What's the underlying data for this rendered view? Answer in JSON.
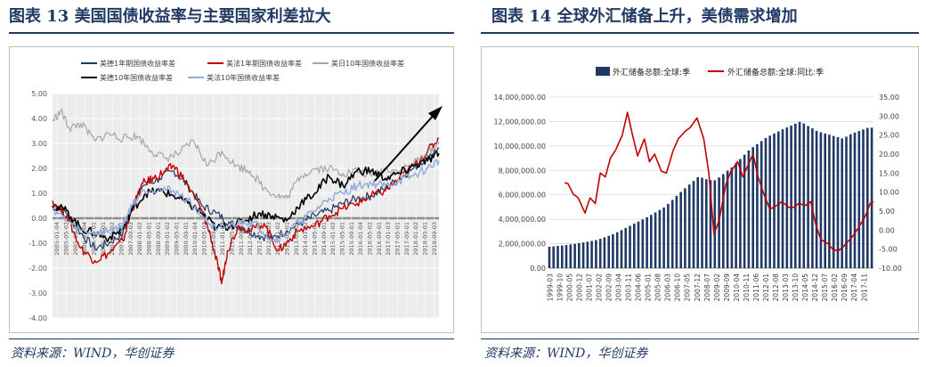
{
  "left_panel": {
    "title": "图表 13 美国国债收益率与主要国家利差拉大",
    "source": "资料来源：WIND，华创证券"
  },
  "right_panel": {
    "title": "图表 14 全球外汇储备上升，美债需求增加",
    "source": "资料来源：WIND，华创证券"
  },
  "chart_data": [
    {
      "type": "line",
      "title": "",
      "ylim": [
        -4,
        5
      ],
      "y_ticks": [
        "5.00",
        "4.00",
        "3.00",
        "2.00",
        "1.00",
        "0.00",
        "-1.00",
        "-2.00",
        "-3.00",
        "-4.00"
      ],
      "grid": true,
      "legend_position": "top",
      "trend_arrow": true,
      "x_tick_labels": [
        "2005-01-04",
        "2005-05-02",
        "2005-09-01",
        "2006-01-04",
        "2006-05-01",
        "2006-09-01",
        "2007-01-02",
        "2007-05-01",
        "2007-09-03",
        "2008-01-02",
        "2008-05-01",
        "2008-09-01",
        "2009-01-02",
        "2009-05-01",
        "2009-09-01",
        "2010-01-04",
        "2010-05-03",
        "2010-09-01",
        "2011-01-04",
        "2011-05-02",
        "2011-09-01",
        "2012-01-03",
        "2012-05-01",
        "2012-09-03",
        "2013-01-02",
        "2013-05-01",
        "2013-09-02",
        "2014-01-02",
        "2014-05-01",
        "2014-09-01",
        "2015-01-02",
        "2015-05-01",
        "2015-09-01",
        "2016-01-04",
        "2016-05-02",
        "2016-09-01",
        "2017-01-03",
        "2017-05-01",
        "2017-09-01",
        "2018-01-02",
        "2018-05-01",
        "2018-09-03"
      ],
      "x_years": [
        2005,
        2018.7
      ],
      "series": [
        {
          "name": "美德1年期国债收益率差",
          "color": "#1f3864",
          "width": 1.2,
          "points": [
            [
              2005,
              0.6
            ],
            [
              2005.5,
              0.2
            ],
            [
              2006,
              -0.6
            ],
            [
              2006.5,
              -1.2
            ],
            [
              2007,
              -1.0
            ],
            [
              2007.5,
              -0.6
            ],
            [
              2007.8,
              0.4
            ],
            [
              2008.2,
              1.3
            ],
            [
              2008.8,
              1.6
            ],
            [
              2009.3,
              1.9
            ],
            [
              2009.8,
              1.3
            ],
            [
              2010.3,
              0.5
            ],
            [
              2010.8,
              0.2
            ],
            [
              2011.3,
              -0.2
            ],
            [
              2011.8,
              -0.4
            ],
            [
              2012.3,
              -0.7
            ],
            [
              2012.8,
              -0.8
            ],
            [
              2013.3,
              -0.5
            ],
            [
              2013.8,
              -0.2
            ],
            [
              2014.3,
              0.1
            ],
            [
              2014.8,
              0.3
            ],
            [
              2015.3,
              0.6
            ],
            [
              2015.8,
              0.8
            ],
            [
              2016.3,
              0.9
            ],
            [
              2016.8,
              1.2
            ],
            [
              2017.3,
              1.6
            ],
            [
              2017.8,
              2.0
            ],
            [
              2018.3,
              2.5
            ],
            [
              2018.7,
              2.8
            ]
          ]
        },
        {
          "name": "美法1年期国债收益率差",
          "color": "#c00000",
          "width": 1.4,
          "points": [
            [
              2005,
              0.7
            ],
            [
              2005.5,
              0.1
            ],
            [
              2006,
              -1.2
            ],
            [
              2006.5,
              -1.7
            ],
            [
              2007,
              -1.4
            ],
            [
              2007.5,
              -0.9
            ],
            [
              2007.8,
              0.3
            ],
            [
              2008.2,
              1.4
            ],
            [
              2008.6,
              1.6
            ],
            [
              2009,
              1.9
            ],
            [
              2009.3,
              2.1
            ],
            [
              2009.7,
              1.5
            ],
            [
              2010.3,
              0.3
            ],
            [
              2010.6,
              -0.7
            ],
            [
              2010.9,
              -2.1
            ],
            [
              2011.0,
              -2.6
            ],
            [
              2011.2,
              -1.3
            ],
            [
              2011.6,
              -0.3
            ],
            [
              2012,
              -0.5
            ],
            [
              2012.5,
              -0.2
            ],
            [
              2013,
              -1.3
            ],
            [
              2013.3,
              -1.0
            ],
            [
              2013.7,
              -0.5
            ],
            [
              2014.3,
              -0.3
            ],
            [
              2014.8,
              0.1
            ],
            [
              2015.3,
              0.4
            ],
            [
              2015.8,
              0.6
            ],
            [
              2016.3,
              0.9
            ],
            [
              2016.8,
              1.1
            ],
            [
              2017.3,
              1.6
            ],
            [
              2017.8,
              2.1
            ],
            [
              2018.3,
              2.7
            ],
            [
              2018.7,
              3.2
            ]
          ]
        },
        {
          "name": "美日10年国债收益率差",
          "color": "#a6a6a6",
          "width": 1.2,
          "points": [
            [
              2005,
              3.9
            ],
            [
              2005.3,
              4.3
            ],
            [
              2005.6,
              3.6
            ],
            [
              2006,
              3.8
            ],
            [
              2006.5,
              3.1
            ],
            [
              2007,
              3.4
            ],
            [
              2007.5,
              3.2
            ],
            [
              2008,
              3.3
            ],
            [
              2008.5,
              2.7
            ],
            [
              2009,
              2.4
            ],
            [
              2009.5,
              2.6
            ],
            [
              2010,
              3.1
            ],
            [
              2010.5,
              2.1
            ],
            [
              2011,
              2.7
            ],
            [
              2011.5,
              2.1
            ],
            [
              2012,
              1.9
            ],
            [
              2012.5,
              1.2
            ],
            [
              2013,
              0.9
            ],
            [
              2013.3,
              0.8
            ],
            [
              2013.8,
              1.7
            ],
            [
              2014.3,
              2.0
            ],
            [
              2014.8,
              2.0
            ],
            [
              2015.3,
              1.8
            ],
            [
              2015.8,
              1.9
            ],
            [
              2016.3,
              1.7
            ],
            [
              2016.8,
              2.0
            ],
            [
              2017.3,
              1.9
            ],
            [
              2017.8,
              2.2
            ],
            [
              2018.3,
              2.6
            ],
            [
              2018.7,
              3.0
            ]
          ]
        },
        {
          "name": "美德10年国债收益率差",
          "color": "#000000",
          "width": 1.6,
          "points": [
            [
              2005,
              0.5
            ],
            [
              2005.5,
              0.3
            ],
            [
              2006,
              -0.4
            ],
            [
              2006.5,
              -0.6
            ],
            [
              2007,
              -0.8
            ],
            [
              2007.5,
              -0.4
            ],
            [
              2007.8,
              0.3
            ],
            [
              2008.3,
              1.0
            ],
            [
              2008.8,
              1.1
            ],
            [
              2009.3,
              0.9
            ],
            [
              2009.8,
              0.6
            ],
            [
              2010.3,
              0.2
            ],
            [
              2010.8,
              -0.4
            ],
            [
              2011.3,
              -0.3
            ],
            [
              2011.8,
              -0.1
            ],
            [
              2012.3,
              0.2
            ],
            [
              2012.8,
              0.1
            ],
            [
              2013.3,
              -0.1
            ],
            [
              2013.8,
              0.6
            ],
            [
              2014.3,
              1.0
            ],
            [
              2014.8,
              1.7
            ],
            [
              2015.3,
              1.3
            ],
            [
              2015.8,
              1.9
            ],
            [
              2016.3,
              1.9
            ],
            [
              2016.8,
              1.6
            ],
            [
              2017.3,
              1.8
            ],
            [
              2017.8,
              2.1
            ],
            [
              2018.3,
              2.3
            ],
            [
              2018.7,
              2.6
            ]
          ]
        },
        {
          "name": "美法10年国债收益率差",
          "color": "#8eaadb",
          "width": 1.4,
          "points": [
            [
              2005,
              0.4
            ],
            [
              2005.5,
              -0.1
            ],
            [
              2006,
              -0.5
            ],
            [
              2006.5,
              -0.6
            ],
            [
              2007,
              -0.5
            ],
            [
              2007.5,
              -0.3
            ],
            [
              2007.8,
              0.5
            ],
            [
              2008.2,
              1.1
            ],
            [
              2008.8,
              1.2
            ],
            [
              2009.3,
              1.1
            ],
            [
              2009.8,
              0.7
            ],
            [
              2010.3,
              0.1
            ],
            [
              2010.8,
              -0.5
            ],
            [
              2011.3,
              -0.3
            ],
            [
              2011.8,
              -0.1
            ],
            [
              2012.3,
              -0.3
            ],
            [
              2012.8,
              -0.9
            ],
            [
              2013.3,
              -0.6
            ],
            [
              2013.8,
              -0.1
            ],
            [
              2014.3,
              0.3
            ],
            [
              2014.8,
              0.8
            ],
            [
              2015.3,
              1.0
            ],
            [
              2015.8,
              1.3
            ],
            [
              2016.3,
              1.4
            ],
            [
              2016.8,
              1.3
            ],
            [
              2017.3,
              1.5
            ],
            [
              2017.8,
              1.7
            ],
            [
              2018.3,
              2.0
            ],
            [
              2018.7,
              2.3
            ]
          ]
        }
      ]
    },
    {
      "type": "bar",
      "title": "",
      "grid": true,
      "legend_position": "top",
      "y_left_ticks": [
        "14,000,000.00",
        "12,000,000.00",
        "10,000,000.00",
        "8,000,000.00",
        "6,000,000.00",
        "4,000,000.00",
        "2,000,000.00",
        "0.00"
      ],
      "y_left_range": [
        0,
        14000000
      ],
      "y_right_ticks": [
        "35.00",
        "30.00",
        "25.00",
        "20.00",
        "15.00",
        "10.00",
        "5.00",
        "0.00",
        "-5.00",
        "-10.00"
      ],
      "y_right_range": [
        -10,
        35
      ],
      "x_tick_labels": [
        "1999-03",
        "1999-10",
        "2000-05",
        "2000-12",
        "2001-07",
        "2002-02",
        "2002-09",
        "2003-04",
        "2003-11",
        "2004-06",
        "2005-01",
        "2005-08",
        "2006-03",
        "2006-10",
        "2007-05",
        "2007-12",
        "2008-07",
        "2009-02",
        "2009-09",
        "2010-04",
        "2010-11",
        "2011-06",
        "2012-01",
        "2012-08",
        "2013-03",
        "2013-10",
        "2014-05",
        "2014-12",
        "2015-07",
        "2016-02",
        "2016-09",
        "2017-04",
        "2017-11"
      ],
      "x_years": [
        1999.2,
        2018.3
      ],
      "series": [
        {
          "name": "外汇储备总额:全球:季",
          "kind": "bar",
          "color": "#1f3864",
          "axis": "left",
          "points": [
            [
              1999.2,
              1.75
            ],
            [
              2000,
              1.85
            ],
            [
              2001,
              2.05
            ],
            [
              2002,
              2.3
            ],
            [
              2003,
              2.8
            ],
            [
              2004,
              3.5
            ],
            [
              2005,
              4.2
            ],
            [
              2006,
              5.0
            ],
            [
              2007,
              6.3
            ],
            [
              2008,
              7.5
            ],
            [
              2008.6,
              7.2
            ],
            [
              2009,
              7.2
            ],
            [
              2010,
              8.3
            ],
            [
              2011,
              9.7
            ],
            [
              2012,
              10.7
            ],
            [
              2013,
              11.4
            ],
            [
              2014,
              12.0
            ],
            [
              2015,
              11.2
            ],
            [
              2016,
              10.8
            ],
            [
              2016.5,
              10.6
            ],
            [
              2017,
              11.0
            ],
            [
              2018,
              11.5
            ],
            [
              2018.3,
              11.5
            ]
          ]
        },
        {
          "name": "外汇储备总额:全球:同比:季",
          "kind": "line",
          "color": "#c00000",
          "axis": "right",
          "points": [
            [
              2000.1,
              12.5
            ],
            [
              2000.3,
              12.2
            ],
            [
              2000.6,
              9.5
            ],
            [
              2000.9,
              8.5
            ],
            [
              2001.3,
              4.5
            ],
            [
              2001.6,
              8.5
            ],
            [
              2001.9,
              7.0
            ],
            [
              2002.2,
              15.0
            ],
            [
              2002.5,
              14.0
            ],
            [
              2002.8,
              19.0
            ],
            [
              2003.1,
              21.0
            ],
            [
              2003.5,
              25.0
            ],
            [
              2003.8,
              31.0
            ],
            [
              2004.1,
              25.0
            ],
            [
              2004.4,
              19.5
            ],
            [
              2004.8,
              24.0
            ],
            [
              2005.1,
              18.0
            ],
            [
              2005.4,
              20.0
            ],
            [
              2005.8,
              15.5
            ],
            [
              2006.1,
              15.0
            ],
            [
              2006.5,
              21.0
            ],
            [
              2006.8,
              24.0
            ],
            [
              2007.2,
              26.0
            ],
            [
              2007.5,
              27.0
            ],
            [
              2007.9,
              29.5
            ],
            [
              2008.3,
              24.0
            ],
            [
              2008.6,
              15.0
            ],
            [
              2008.9,
              -1.0
            ],
            [
              2009.2,
              2.5
            ],
            [
              2009.6,
              12.0
            ],
            [
              2009.9,
              15.5
            ],
            [
              2010.3,
              18.0
            ],
            [
              2010.6,
              14.0
            ],
            [
              2010.9,
              17.0
            ],
            [
              2011.2,
              20.0
            ],
            [
              2011.5,
              14.0
            ],
            [
              2011.8,
              10.0
            ],
            [
              2012.2,
              5.5
            ],
            [
              2012.6,
              6.5
            ],
            [
              2012.9,
              7.5
            ],
            [
              2013.3,
              6.0
            ],
            [
              2013.6,
              6.0
            ],
            [
              2013.9,
              7.0
            ],
            [
              2014.3,
              6.5
            ],
            [
              2014.6,
              7.5
            ],
            [
              2014.9,
              1.5
            ],
            [
              2015.2,
              -2.5
            ],
            [
              2015.6,
              -3.5
            ],
            [
              2015.9,
              -5.0
            ],
            [
              2016.2,
              -5.5
            ],
            [
              2016.5,
              -4.5
            ],
            [
              2016.8,
              -3.0
            ],
            [
              2017.1,
              -1.5
            ],
            [
              2017.4,
              0.5
            ],
            [
              2017.8,
              3.5
            ],
            [
              2018.1,
              7.0
            ],
            [
              2018.3,
              7.5
            ]
          ]
        }
      ],
      "bar_value_unit_note_excluded": true
    }
  ]
}
